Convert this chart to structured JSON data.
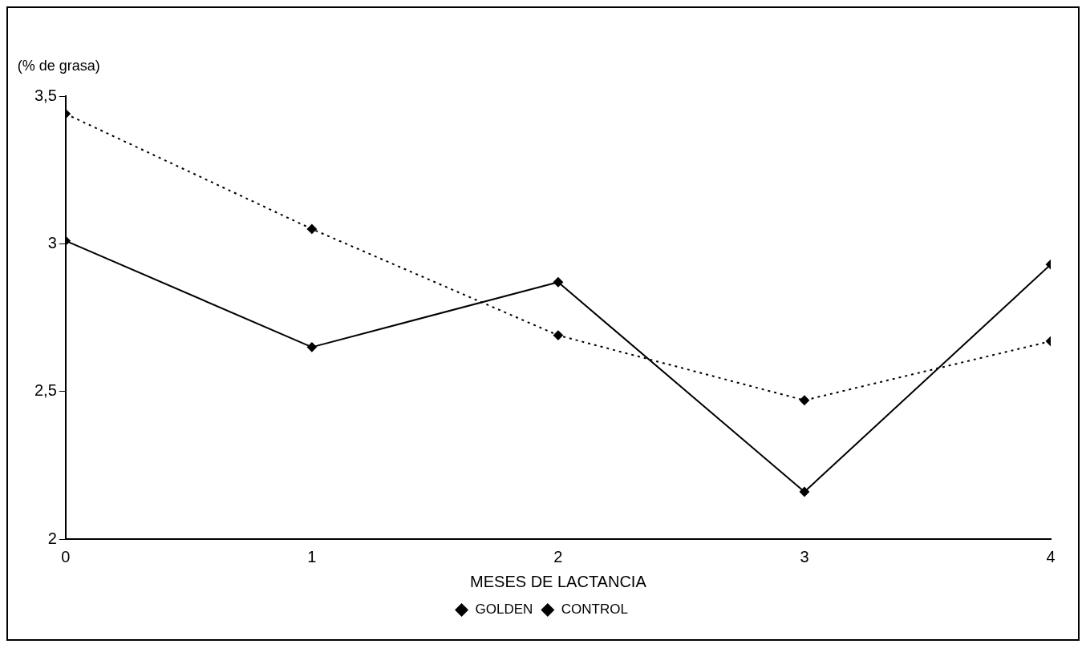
{
  "chart_data": {
    "type": "line",
    "xlabel": "MESES DE LACTANCIA",
    "ylabel": "(% de grasa)",
    "x": [
      0,
      1,
      2,
      3,
      4
    ],
    "xlim": [
      0,
      4
    ],
    "xticks": [
      0,
      1,
      2,
      3,
      4
    ],
    "ylim": [
      2,
      3.5
    ],
    "yticks": [
      2,
      {
        "value": 2.5,
        "label": "2,5"
      },
      3,
      {
        "value": 3.5,
        "label": "3,5"
      }
    ],
    "grid": false,
    "legend": "bottom",
    "marker": "diamond",
    "series": [
      {
        "name": "GOLDEN",
        "color": "#000000",
        "values": [
          3.01,
          2.65,
          2.87,
          2.16,
          2.93
        ],
        "line_style": "solid"
      },
      {
        "name": "CONTROL",
        "color": "#000000",
        "values": [
          3.44,
          3.05,
          2.69,
          2.47,
          2.67
        ],
        "line_style": "dotted"
      }
    ]
  }
}
